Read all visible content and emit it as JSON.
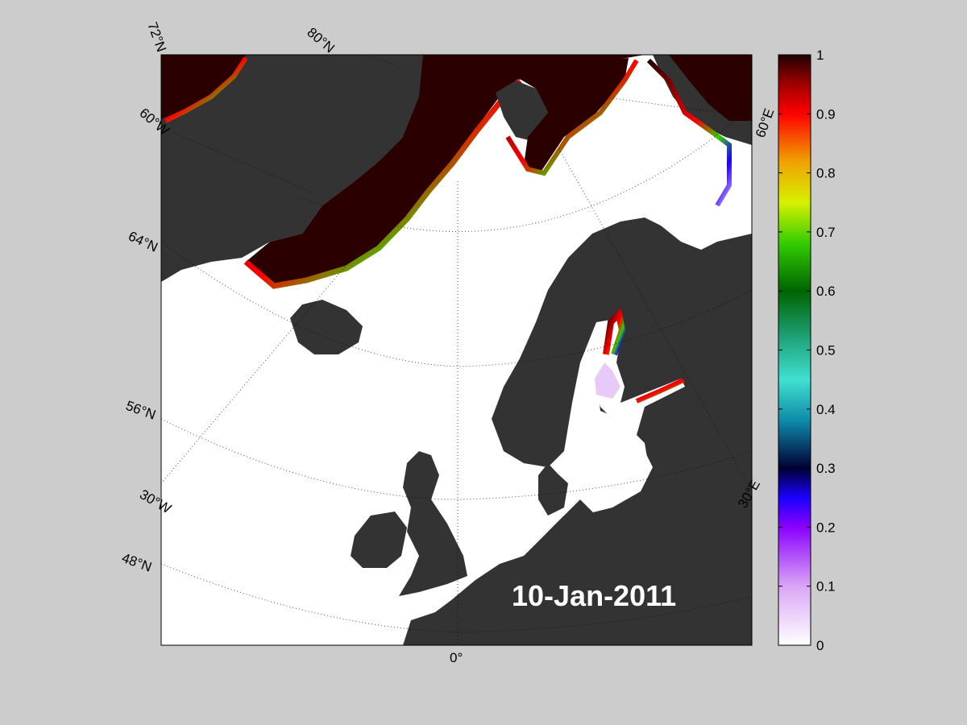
{
  "date_label": "10-Jan-2011",
  "map": {
    "graticule_labels": {
      "lat_72": "72°N",
      "lat_80": "80°N",
      "lat_64": "64°N",
      "lat_56": "56°N",
      "lat_48": "48°N",
      "lon_60w": "60°W",
      "lon_30w": "30°W",
      "lon_0": "0°",
      "lon_30e": "30°E",
      "lon_60e": "60°E"
    },
    "colors": {
      "background": "#cccccc",
      "open_water": "#ffffff",
      "land": "#333333",
      "land_ice": "#7a7a7a",
      "sea_ice_full": "#2a0000"
    }
  },
  "colorbar": {
    "ticks": [
      "1",
      "0.9",
      "0.8",
      "0.7",
      "0.6",
      "0.5",
      "0.4",
      "0.3",
      "0.2",
      "0.1",
      "0"
    ],
    "tick_values": [
      1,
      0.9,
      0.8,
      0.7,
      0.6,
      0.5,
      0.4,
      0.3,
      0.2,
      0.1,
      0
    ],
    "stops": [
      {
        "v": 0.0,
        "c": "#ffffff"
      },
      {
        "v": 0.1,
        "c": "#d9a6f5"
      },
      {
        "v": 0.2,
        "c": "#8a00ff"
      },
      {
        "v": 0.25,
        "c": "#1a00ff"
      },
      {
        "v": 0.3,
        "c": "#000033"
      },
      {
        "v": 0.38,
        "c": "#0d8aa8"
      },
      {
        "v": 0.45,
        "c": "#40e0d0"
      },
      {
        "v": 0.52,
        "c": "#1fa37a"
      },
      {
        "v": 0.6,
        "c": "#006400"
      },
      {
        "v": 0.68,
        "c": "#33cc00"
      },
      {
        "v": 0.75,
        "c": "#d8f000"
      },
      {
        "v": 0.82,
        "c": "#f0a000"
      },
      {
        "v": 0.9,
        "c": "#ff0000"
      },
      {
        "v": 0.95,
        "c": "#a00000"
      },
      {
        "v": 1.0,
        "c": "#200000"
      }
    ]
  }
}
